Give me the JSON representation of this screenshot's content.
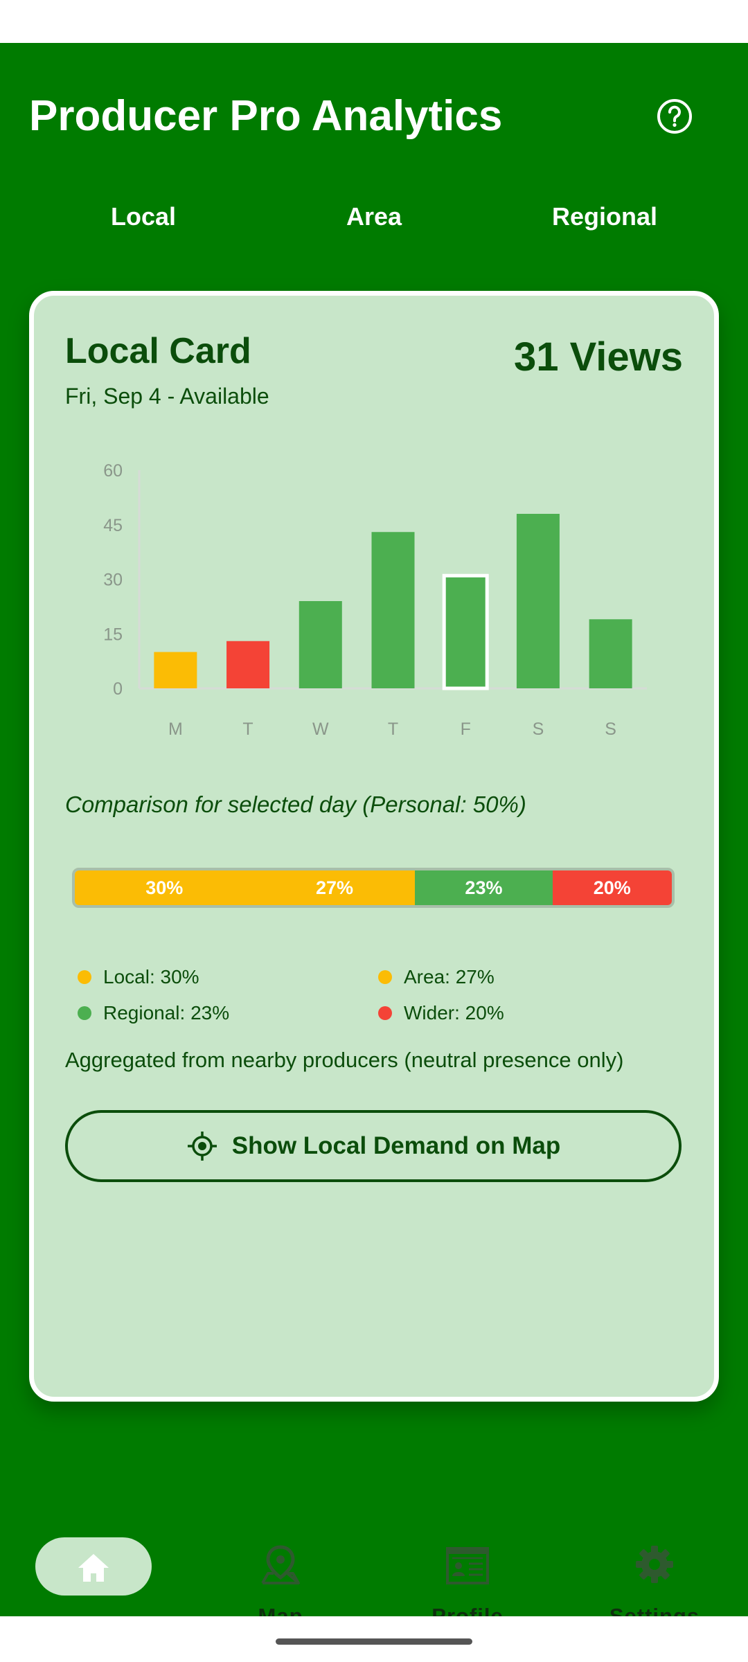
{
  "app": {
    "title": "Producer Pro Analytics",
    "icons": {
      "help": "help-circle-icon"
    }
  },
  "tabs": [
    {
      "label": "Local"
    },
    {
      "label": "Area"
    },
    {
      "label": "Regional"
    }
  ],
  "card": {
    "title": "Local Card",
    "subtitle": "Fri, Sep 4 - Available",
    "views": "31 Views"
  },
  "chart_data": {
    "type": "bar",
    "categories": [
      "M",
      "T",
      "W",
      "T",
      "F",
      "S",
      "S"
    ],
    "values": [
      10,
      13,
      24,
      43,
      31,
      48,
      19
    ],
    "bar_colors": [
      "#fbbc05",
      "#f44336",
      "#4caf50",
      "#4caf50",
      "#4caf50",
      "#4caf50",
      "#4caf50"
    ],
    "highlighted_index": 4,
    "yticks": [
      0,
      15,
      30,
      45,
      60
    ],
    "ylim": [
      0,
      60
    ],
    "grid": false
  },
  "comparison": {
    "caption": "Comparison for selected day (Personal: 50%)",
    "segments": [
      {
        "label": "30%",
        "value": 30,
        "color": "#fbbc05"
      },
      {
        "label": "27%",
        "value": 27,
        "color": "#fbbc05"
      },
      {
        "label": "23%",
        "value": 23,
        "color": "#4caf50"
      },
      {
        "label": "20%",
        "value": 20,
        "color": "#f44336"
      }
    ],
    "legend": [
      {
        "text": "Local: 30%",
        "color": "#fbbc05"
      },
      {
        "text": "Area: 27%",
        "color": "#fbbc05"
      },
      {
        "text": "Regional: 23%",
        "color": "#4caf50"
      },
      {
        "text": "Wider: 20%",
        "color": "#f44336"
      }
    ]
  },
  "footer_note": "Aggregated from nearby producers (neutral presence only)",
  "map_button": {
    "label": "Show Local Demand on Map",
    "icon": "crosshair-icon"
  },
  "bottom_nav": {
    "items": [
      {
        "label": "",
        "icon": "home-icon",
        "active": true
      },
      {
        "label": "Map",
        "icon": "map-pin-icon",
        "active": false
      },
      {
        "label": "Profile",
        "icon": "id-card-icon",
        "active": false
      },
      {
        "label": "Settings",
        "icon": "gear-icon",
        "active": false
      }
    ]
  },
  "colors": {
    "primary": "#007b00",
    "card_bg": "#c8e6c9",
    "text_dark": "#0b4d0b",
    "yellow": "#fbbc05",
    "green": "#4caf50",
    "red": "#f44336"
  }
}
